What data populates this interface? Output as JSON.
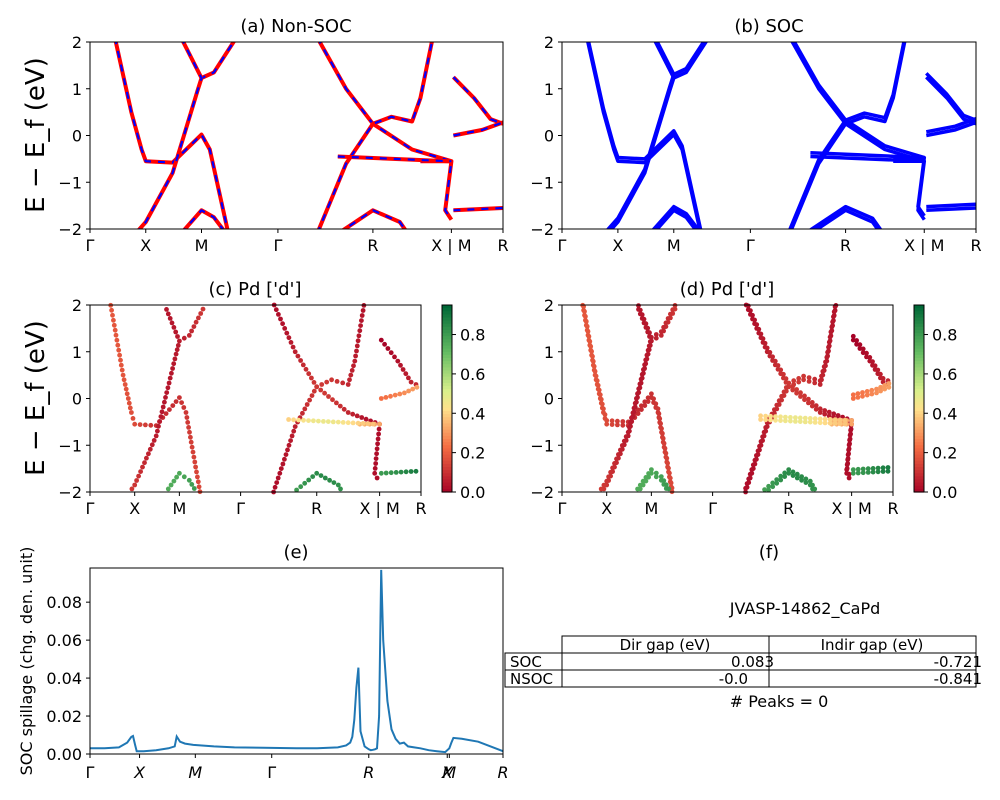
{
  "chart_data": [
    {
      "id": "a",
      "type": "line",
      "title": "(a) Non-SOC",
      "ylabel": "E − E_f (eV)",
      "ylim": [
        -2,
        2
      ],
      "yticks": [
        -2,
        -1,
        0,
        1,
        2
      ],
      "kticks": [
        "Γ",
        "X",
        "M",
        "Γ",
        "R",
        "X | M",
        "R"
      ],
      "series": [
        {
          "color": "#ff0000",
          "style": "solid"
        },
        {
          "color": "#0000ff",
          "style": "dashed"
        }
      ]
    },
    {
      "id": "b",
      "type": "line",
      "title": "(b) SOC",
      "ylim": [
        -2,
        2
      ],
      "yticks": [
        -2,
        -1,
        0,
        1,
        2
      ],
      "kticks": [
        "Γ",
        "X",
        "M",
        "Γ",
        "R",
        "X | M",
        "R"
      ],
      "series": [
        {
          "color": "#0000ff",
          "style": "solid"
        }
      ]
    },
    {
      "id": "c",
      "type": "scatter",
      "title": "(c)  Pd ['d']",
      "ylabel": "E − E_f (eV)",
      "ylim": [
        -2,
        2
      ],
      "yticks": [
        -2,
        -1,
        0,
        1,
        2
      ],
      "kticks": [
        "Γ",
        "X",
        "M",
        "Γ",
        "R",
        "X | M",
        "R"
      ],
      "colorbar": {
        "range": [
          0.0,
          0.95
        ],
        "ticks": [
          "0.0",
          "0.2",
          "0.4",
          "0.6",
          "0.8"
        ],
        "colormap": "RdYlGn"
      }
    },
    {
      "id": "d",
      "type": "scatter",
      "title": "(d) Pd ['d']",
      "ylim": [
        -2,
        2
      ],
      "yticks": [
        -2,
        -1,
        0,
        1,
        2
      ],
      "kticks": [
        "Γ",
        "X",
        "M",
        "Γ",
        "R",
        "X | M",
        "R"
      ],
      "colorbar": {
        "range": [
          0.0,
          0.95
        ],
        "ticks": [
          "0.0",
          "0.2",
          "0.4",
          "0.6",
          "0.8"
        ],
        "colormap": "RdYlGn"
      }
    },
    {
      "id": "e",
      "type": "line",
      "title": "(e)",
      "ylabel": "SOC spillage (chg. den. unit)",
      "ylim": [
        0,
        0.098
      ],
      "yticks": [
        "0.00",
        "0.02",
        "0.04",
        "0.06",
        "0.08"
      ],
      "kticks": [
        "Γ",
        "X",
        "M",
        "Γ",
        "R",
        "X",
        "M",
        "R"
      ],
      "color": "#1f77b4",
      "x": [
        0.0,
        0.035,
        0.07,
        0.09,
        0.1,
        0.104,
        0.109,
        0.113,
        0.13,
        0.16,
        0.19,
        0.205,
        0.21,
        0.218,
        0.23,
        0.25,
        0.3,
        0.35,
        0.42,
        0.5,
        0.55,
        0.6,
        0.62,
        0.63,
        0.635,
        0.64,
        0.645,
        0.65,
        0.655,
        0.665,
        0.675,
        0.68,
        0.685,
        0.69,
        0.695,
        0.7,
        0.705,
        0.71,
        0.72,
        0.73,
        0.74,
        0.75,
        0.76,
        0.77,
        0.785,
        0.8,
        0.82,
        0.84,
        0.86,
        0.87,
        0.875,
        0.88,
        0.9,
        0.94,
        0.97,
        1.0
      ],
      "values": [
        0.003,
        0.003,
        0.0035,
        0.006,
        0.009,
        0.0095,
        0.005,
        0.0015,
        0.0015,
        0.002,
        0.003,
        0.004,
        0.0092,
        0.0065,
        0.0055,
        0.0048,
        0.004,
        0.0035,
        0.0033,
        0.003,
        0.003,
        0.0035,
        0.0045,
        0.006,
        0.009,
        0.018,
        0.035,
        0.0455,
        0.012,
        0.004,
        0.0025,
        0.002,
        0.0022,
        0.0025,
        0.003,
        0.02,
        0.097,
        0.06,
        0.028,
        0.013,
        0.008,
        0.0055,
        0.006,
        0.004,
        0.0035,
        0.003,
        0.002,
        0.0015,
        0.001,
        0.003,
        0.006,
        0.0085,
        0.008,
        0.0065,
        0.004,
        0.0015
      ]
    },
    {
      "id": "f",
      "type": "table",
      "title": "(f)",
      "subtitle": "JVASP-14862_CaPd",
      "columns": [
        "Dir gap (eV)",
        "Indir gap (eV)"
      ],
      "rows": [
        {
          "label": "SOC",
          "cells": [
            "0.083",
            "-0.721"
          ]
        },
        {
          "label": "NSOC",
          "cells": [
            "-0.0",
            "-0.841"
          ]
        }
      ],
      "footer": "# Peaks = 0"
    }
  ]
}
